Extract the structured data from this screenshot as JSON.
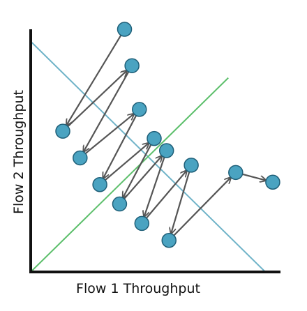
{
  "labels": {
    "x_axis": "Flow 1 Throughput",
    "y_axis": "Flow 2 Throughput"
  },
  "colors": {
    "axis": "#111111",
    "efficiency_line": "#6fb3c8",
    "fairness_line": "#5cbf6b",
    "point_fill": "#4aa3c1",
    "arrow": "#555555"
  },
  "chart_data": {
    "type": "scatter",
    "title": "",
    "xlabel": "Flow 1 Throughput",
    "ylabel": "Flow 2 Throughput",
    "xlim": [
      0,
      1
    ],
    "ylim": [
      0,
      1
    ],
    "lines": [
      {
        "role": "efficiency",
        "points": [
          [
            0,
            0.95
          ],
          [
            0.95,
            0
          ]
        ]
      },
      {
        "role": "fairness",
        "points": [
          [
            0,
            0
          ],
          [
            0.8,
            0.8
          ]
        ]
      }
    ],
    "points": [
      [
        0.38,
        1.0
      ],
      [
        0.41,
        0.85
      ],
      [
        0.13,
        0.58
      ],
      [
        0.44,
        0.67
      ],
      [
        0.2,
        0.47
      ],
      [
        0.5,
        0.55
      ],
      [
        0.28,
        0.36
      ],
      [
        0.55,
        0.5
      ],
      [
        0.36,
        0.28
      ],
      [
        0.65,
        0.44
      ],
      [
        0.45,
        0.2
      ],
      [
        0.83,
        0.41
      ],
      [
        0.56,
        0.13
      ],
      [
        0.98,
        0.37
      ]
    ],
    "arrows": [
      {
        "from": 0,
        "to": 2
      },
      {
        "from": 2,
        "to": 1
      },
      {
        "from": 1,
        "to": 4
      },
      {
        "from": 4,
        "to": 3
      },
      {
        "from": 3,
        "to": 6
      },
      {
        "from": 6,
        "to": 5
      },
      {
        "from": 5,
        "to": 8
      },
      {
        "from": 8,
        "to": 7
      },
      {
        "from": 7,
        "to": 10
      },
      {
        "from": 10,
        "to": 9
      },
      {
        "from": 9,
        "to": 12
      },
      {
        "from": 12,
        "to": 11
      },
      {
        "from": 11,
        "to": 13
      }
    ]
  }
}
